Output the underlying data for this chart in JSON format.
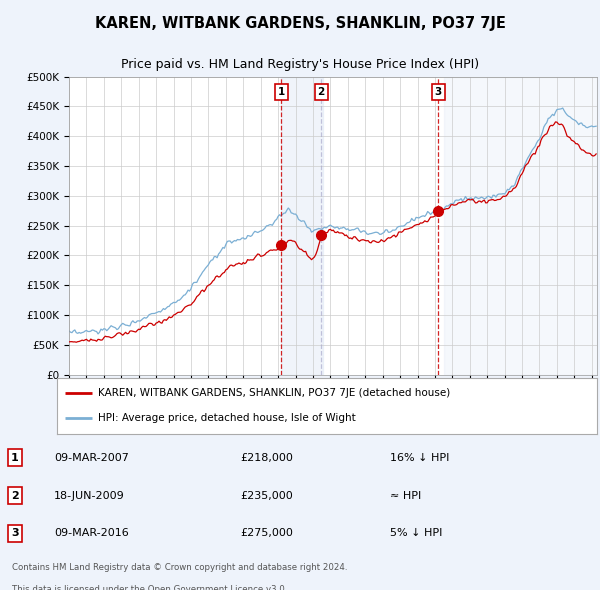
{
  "title": "KAREN, WITBANK GARDENS, SHANKLIN, PO37 7JE",
  "subtitle": "Price paid vs. HM Land Registry's House Price Index (HPI)",
  "ylim": [
    0,
    500000
  ],
  "xlim_start": 1995.0,
  "xlim_end": 2025.3,
  "legend_line1": "KAREN, WITBANK GARDENS, SHANKLIN, PO37 7JE (detached house)",
  "legend_line2": "HPI: Average price, detached house, Isle of Wight",
  "transaction1_date": "09-MAR-2007",
  "transaction1_price": "£218,000",
  "transaction1_rel": "16% ↓ HPI",
  "transaction2_date": "18-JUN-2009",
  "transaction2_price": "£235,000",
  "transaction2_rel": "≈ HPI",
  "transaction3_date": "09-MAR-2016",
  "transaction3_price": "£275,000",
  "transaction3_rel": "5% ↓ HPI",
  "footer1": "Contains HM Land Registry data © Crown copyright and database right 2024.",
  "footer2": "This data is licensed under the Open Government Licence v3.0.",
  "bg_color": "#eef3fb",
  "plot_bg_color": "#ffffff",
  "hpi_color": "#7bafd4",
  "price_color": "#cc0000",
  "vline1_color": "#cc0000",
  "vline2_color": "#aaaacc",
  "vline3_color": "#cc0000",
  "grid_color": "#cccccc",
  "marker1_x": 2007.19,
  "marker2_x": 2009.47,
  "marker3_x": 2016.19,
  "marker1_y": 218000,
  "marker2_y": 235000,
  "marker3_y": 275000,
  "shade_alpha": 0.12
}
